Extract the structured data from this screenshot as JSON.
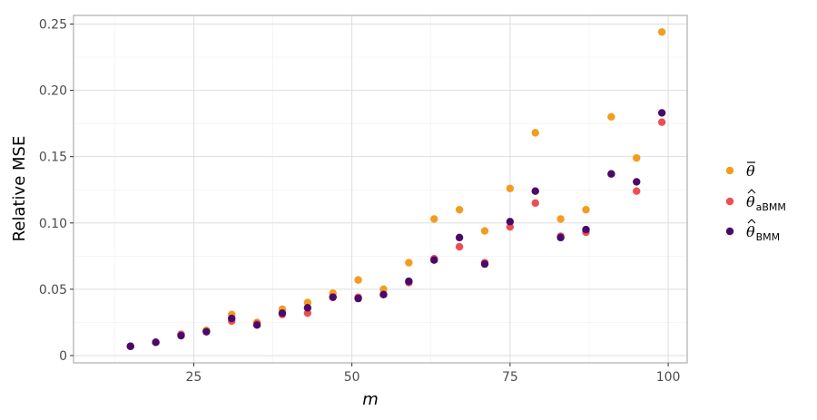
{
  "chart_data": {
    "type": "scatter",
    "title": "",
    "xlabel": "m",
    "ylabel": "Relative MSE",
    "xlim": [
      6,
      103
    ],
    "ylim": [
      -0.0055,
      0.2565
    ],
    "x_ticks": [
      25,
      50,
      75,
      100
    ],
    "x_tick_labels": [
      "25",
      "50",
      "75",
      "100"
    ],
    "y_ticks": [
      0,
      0.05,
      0.1,
      0.15,
      0.2,
      0.25
    ],
    "y_tick_labels": [
      "0",
      "0.05",
      "0.10",
      "0.15",
      "0.20",
      "0.25"
    ],
    "grid": true,
    "legend_position": "right",
    "x": [
      15,
      19,
      23,
      27,
      31,
      35,
      39,
      43,
      47,
      51,
      55,
      59,
      63,
      67,
      71,
      75,
      79,
      83,
      87,
      91,
      95,
      99
    ],
    "series": [
      {
        "name": "θ̄",
        "legend_base": "θ",
        "legend_sub": "",
        "legend_accent": "bar",
        "color": "#f39c1f",
        "values": [
          0.007,
          0.01,
          0.016,
          0.019,
          0.031,
          0.025,
          0.035,
          0.04,
          0.047,
          0.057,
          0.05,
          0.07,
          0.103,
          0.11,
          0.094,
          0.126,
          0.168,
          0.103,
          0.11,
          0.18,
          0.149,
          0.244
        ]
      },
      {
        "name": "θ̂aBMM",
        "legend_base": "θ",
        "legend_sub": "aBMM",
        "legend_accent": "hat",
        "color": "#ef4e50",
        "values": [
          0.007,
          0.01,
          0.016,
          0.018,
          0.026,
          0.024,
          0.031,
          0.032,
          0.044,
          0.044,
          0.046,
          0.055,
          0.073,
          0.082,
          0.07,
          0.097,
          0.115,
          0.09,
          0.093,
          0.137,
          0.124,
          0.176
        ]
      },
      {
        "name": "θ̂BMM",
        "legend_base": "θ",
        "legend_sub": "BMM",
        "legend_accent": "hat",
        "color": "#4a0a6b",
        "values": [
          0.007,
          0.01,
          0.015,
          0.018,
          0.028,
          0.023,
          0.032,
          0.036,
          0.044,
          0.043,
          0.046,
          0.056,
          0.072,
          0.089,
          0.069,
          0.101,
          0.124,
          0.089,
          0.095,
          0.137,
          0.131,
          0.183
        ]
      }
    ]
  }
}
